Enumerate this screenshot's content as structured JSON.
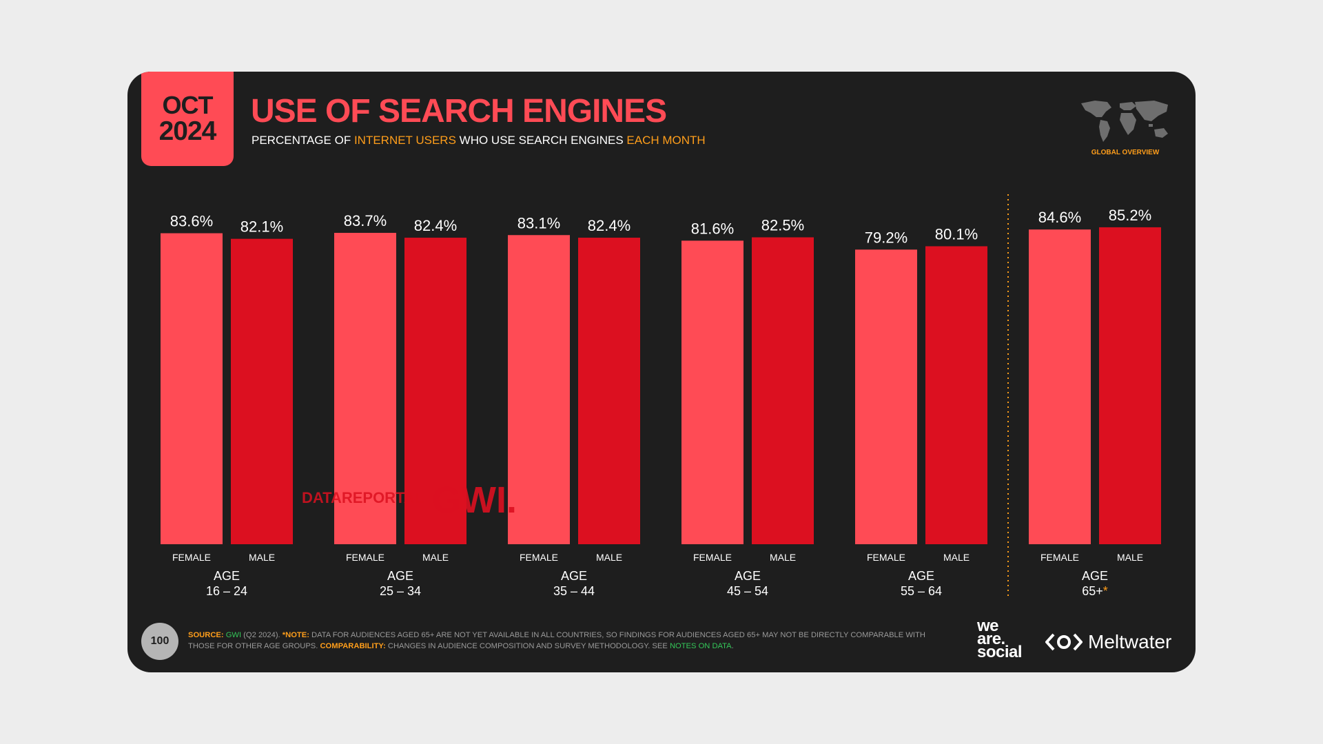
{
  "header": {
    "month": "OCT",
    "year": "2024",
    "title": "USE OF SEARCH ENGINES",
    "subtitle_part1": "PERCENTAGE OF ",
    "subtitle_part2": "INTERNET USERS",
    "subtitle_part3": " WHO USE SEARCH ENGINES ",
    "subtitle_part4": "EACH MONTH",
    "section_label": "GLOBAL OVERVIEW"
  },
  "colors": {
    "background": "#1e1e1e",
    "female": "#ff4b55",
    "male": "#dc1020",
    "accent": "#ff9e1b",
    "link": "#34c759"
  },
  "watermark": {
    "portal": "DATAREPORTAL",
    "gwi": "GWI."
  },
  "chart_data": {
    "type": "bar",
    "title": "USE OF SEARCH ENGINES",
    "unit": "%",
    "ylim": [
      0,
      100
    ],
    "categories": [
      "16 – 24",
      "25 – 34",
      "35 – 44",
      "45 – 54",
      "55 – 64",
      "65+"
    ],
    "category_prefix": "AGE",
    "asterisk_on": "65+",
    "series": [
      {
        "name": "FEMALE",
        "values": [
          83.6,
          83.7,
          83.1,
          81.6,
          79.2,
          84.6
        ],
        "labels": [
          "83.6%",
          "83.7%",
          "83.1%",
          "81.6%",
          "79.2%",
          "84.6%"
        ]
      },
      {
        "name": "MALE",
        "values": [
          82.1,
          82.4,
          82.4,
          82.5,
          80.1,
          85.2
        ],
        "labels": [
          "82.1%",
          "82.4%",
          "82.4%",
          "82.5%",
          "80.1%",
          "85.2%"
        ]
      }
    ]
  },
  "footer": {
    "page_number": "100",
    "source_label": "SOURCE:",
    "source_name": "GWI",
    "source_date": " (Q2 2024). ",
    "note_label": "*NOTE:",
    "note_text": " DATA FOR AUDIENCES AGED 65+ ARE NOT YET AVAILABLE IN ALL COUNTRIES, SO FINDINGS FOR AUDIENCES AGED 65+ MAY NOT BE DIRECTLY COMPARABLE WITH THOSE FOR OTHER AGE GROUPS. ",
    "comparability_label": "COMPARABILITY:",
    "comparability_text": " CHANGES IN AUDIENCE COMPOSITION AND SURVEY METHODOLOGY. SEE ",
    "notes_link": "NOTES ON DATA",
    "notes_end": ".",
    "logo_was": [
      "we",
      "are.",
      "social"
    ],
    "logo_meltwater": "Meltwater"
  }
}
